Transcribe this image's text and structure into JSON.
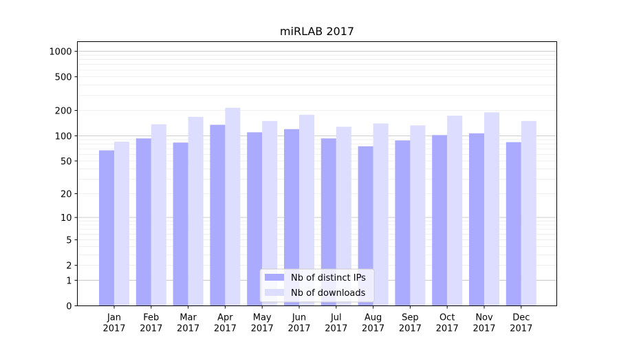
{
  "chart_data": {
    "type": "bar",
    "title": "miRLAB 2017",
    "xlabel": "",
    "ylabel": "",
    "scale": "symlog",
    "ylim": [
      0,
      1300
    ],
    "yticks": [
      {
        "value": 0,
        "label": "0"
      },
      {
        "value": 1,
        "label": "1"
      },
      {
        "value": 2,
        "label": "2"
      },
      {
        "value": 5,
        "label": "5"
      },
      {
        "value": 10,
        "label": "10"
      },
      {
        "value": 20,
        "label": "20"
      },
      {
        "value": 50,
        "label": "50"
      },
      {
        "value": 100,
        "label": "100"
      },
      {
        "value": 200,
        "label": "200"
      },
      {
        "value": 500,
        "label": "500"
      },
      {
        "value": 1000,
        "label": "1000"
      }
    ],
    "categories": [
      {
        "month": "Jan",
        "year": "2017"
      },
      {
        "month": "Feb",
        "year": "2017"
      },
      {
        "month": "Mar",
        "year": "2017"
      },
      {
        "month": "Apr",
        "year": "2017"
      },
      {
        "month": "May",
        "year": "2017"
      },
      {
        "month": "Jun",
        "year": "2017"
      },
      {
        "month": "Jul",
        "year": "2017"
      },
      {
        "month": "Aug",
        "year": "2017"
      },
      {
        "month": "Sep",
        "year": "2017"
      },
      {
        "month": "Oct",
        "year": "2017"
      },
      {
        "month": "Nov",
        "year": "2017"
      },
      {
        "month": "Dec",
        "year": "2017"
      }
    ],
    "series": [
      {
        "name": "Nb of distinct IPs",
        "color": "#aaaaff",
        "values": [
          67,
          93,
          83,
          135,
          110,
          120,
          93,
          75,
          88,
          102,
          107,
          84
        ]
      },
      {
        "name": "Nb of downloads",
        "color": "#ddddff",
        "values": [
          85,
          137,
          168,
          215,
          150,
          178,
          128,
          140,
          133,
          173,
          190,
          150
        ]
      }
    ],
    "grid": true,
    "legend_position": "bottom-center"
  }
}
